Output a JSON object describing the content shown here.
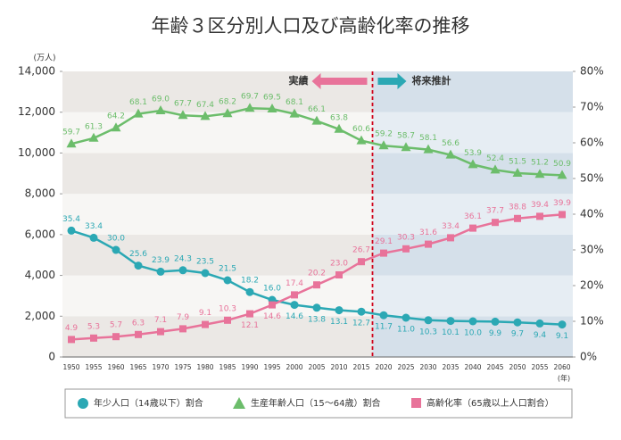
{
  "chart_data": {
    "type": "line",
    "title": "年齢３区分別人口及び高齢化率の推移",
    "y_label": "(万人)",
    "x_label": "(年)",
    "annotations": [
      "実績",
      "将来推計"
    ],
    "x": [
      1950,
      1955,
      1960,
      1965,
      1970,
      1975,
      1980,
      1985,
      1990,
      1995,
      2000,
      2005,
      2010,
      2015,
      2020,
      2025,
      2030,
      2035,
      2040,
      2045,
      2050,
      2055,
      2060
    ],
    "ylim": [
      0,
      14000
    ],
    "yticks": [
      0,
      {
        "value": 2000,
        "label": "2,000"
      },
      {
        "value": 4000,
        "label": "4,000"
      },
      {
        "value": 6000,
        "label": "6,000"
      },
      {
        "value": 8000,
        "label": "8,000"
      },
      {
        "value": 10000,
        "label": "10,000"
      },
      {
        "value": 12000,
        "label": "12,000"
      },
      {
        "value": 14000,
        "label": "14,000"
      }
    ],
    "y2lim": [
      0,
      80
    ],
    "y2ticks": [
      {
        "value": 0,
        "label": "0%"
      },
      {
        "value": 10,
        "label": "10%"
      },
      {
        "value": 20,
        "label": "20%"
      },
      {
        "value": 30,
        "label": "30%"
      },
      {
        "value": 40,
        "label": "40%"
      },
      {
        "value": 50,
        "label": "50%"
      },
      {
        "value": 60,
        "label": "60%"
      },
      {
        "value": 70,
        "label": "70%"
      },
      {
        "value": 80,
        "label": "80%"
      }
    ],
    "series": [
      {
        "name": "年少人口（14歳以下）割合",
        "color": "#2ba8b4",
        "marker": "circle",
        "axis": "y2",
        "values": [
          35.4,
          33.4,
          30.0,
          25.6,
          23.9,
          24.3,
          23.5,
          21.5,
          18.2,
          16.0,
          14.6,
          13.8,
          13.1,
          12.7,
          11.7,
          11.0,
          10.3,
          10.1,
          10.0,
          9.9,
          9.7,
          9.4,
          9.1
        ],
        "value_labels": [
          "35.4",
          "33.4",
          "30.0",
          "25.6",
          "23.9",
          "24.3",
          "23.5",
          "21.5",
          "18.2",
          "16.0",
          "14.6",
          "13.8",
          "13.1",
          "12.7",
          "11.7",
          "11.0",
          "10.3",
          "10.1",
          "10.0",
          "9.9",
          "9.7",
          "9.4",
          "9.1"
        ]
      },
      {
        "name": "生産年齢人口（15～64歳）割合",
        "color": "#6cbd6b",
        "marker": "triangle",
        "axis": "y2",
        "values": [
          59.7,
          61.3,
          64.2,
          68.1,
          69.0,
          67.7,
          67.4,
          68.2,
          69.7,
          69.5,
          68.1,
          66.1,
          63.8,
          60.6,
          59.2,
          58.7,
          58.1,
          56.6,
          53.9,
          52.4,
          51.5,
          51.2,
          50.9
        ],
        "value_labels": [
          "59.7",
          "61.3",
          "64.2",
          "68.1",
          "69.0",
          "67.7",
          "67.4",
          "68.2",
          "69.7",
          "69.5",
          "68.1",
          "66.1",
          "63.8",
          "60.6",
          "59.2",
          "58.7",
          "58.1",
          "56.6",
          "53.9",
          "52.4",
          "51.5",
          "51.2",
          "50.9"
        ]
      },
      {
        "name": "高齢化率（65歳以上人口割合）",
        "color": "#e8739a",
        "marker": "square",
        "axis": "y2",
        "values": [
          4.9,
          5.3,
          5.7,
          6.3,
          7.1,
          7.9,
          9.1,
          10.3,
          12.1,
          14.6,
          17.4,
          20.2,
          23.0,
          26.7,
          29.1,
          30.3,
          31.6,
          33.4,
          36.1,
          37.7,
          38.8,
          39.4,
          39.9
        ],
        "value_labels": [
          "4.9",
          "5.3",
          "5.7",
          "6.3",
          "7.1",
          "7.9",
          "9.1",
          "10.3",
          "12.1",
          "14.6",
          "17.4",
          "20.2",
          "23.0",
          "26.7",
          "29.1",
          "30.3",
          "31.6",
          "33.4",
          "36.1",
          "37.7",
          "38.8",
          "39.4",
          "39.9"
        ]
      }
    ]
  }
}
